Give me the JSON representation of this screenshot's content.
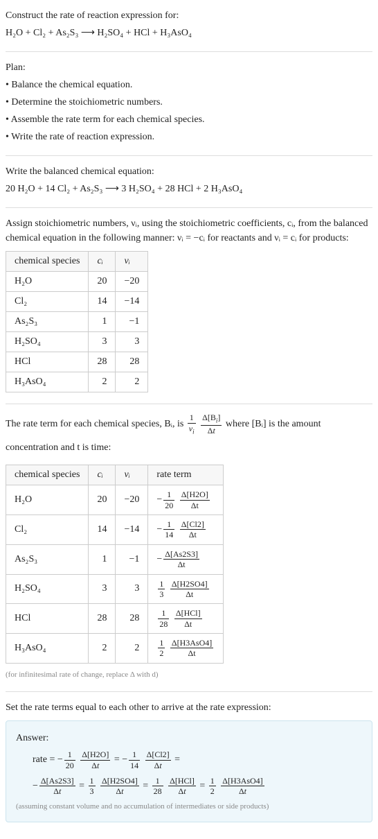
{
  "intro": {
    "line1": "Construct the rate of reaction expression for:",
    "equation": "H₂O + Cl₂ + As₂S₃  ⟶  H₂SO₄ + HCl + H₃AsO₄"
  },
  "plan": {
    "heading": "Plan:",
    "items": [
      "Balance the chemical equation.",
      "Determine the stoichiometric numbers.",
      "Assemble the rate term for each chemical species.",
      "Write the rate of reaction expression."
    ]
  },
  "balanced": {
    "heading": "Write the balanced chemical equation:",
    "equation": "20 H₂O + 14 Cl₂ + As₂S₃  ⟶  3 H₂SO₄ + 28 HCl + 2 H₃AsO₄"
  },
  "stoich": {
    "text": "Assign stoichiometric numbers, νᵢ, using the stoichiometric coefficients, cᵢ, from the balanced chemical equation in the following manner: νᵢ = −cᵢ for reactants and νᵢ = cᵢ for products:",
    "headers": [
      "chemical species",
      "cᵢ",
      "νᵢ"
    ],
    "rows": [
      {
        "sp": "H₂O",
        "c": "20",
        "v": "−20"
      },
      {
        "sp": "Cl₂",
        "c": "14",
        "v": "−14"
      },
      {
        "sp": "As₂S₃",
        "c": "1",
        "v": "−1"
      },
      {
        "sp": "H₂SO₄",
        "c": "3",
        "v": "3"
      },
      {
        "sp": "HCl",
        "c": "28",
        "v": "28"
      },
      {
        "sp": "H₃AsO₄",
        "c": "2",
        "v": "2"
      }
    ]
  },
  "rate": {
    "text_a": "The rate term for each chemical species, Bᵢ, is ",
    "text_b": " where [Bᵢ] is the amount concentration and t is time:",
    "headers": [
      "chemical species",
      "cᵢ",
      "νᵢ",
      "rate term"
    ],
    "rows": [
      {
        "sp": "H₂O",
        "c": "20",
        "v": "−20",
        "rt_pre": "−",
        "rt_coef_num": "1",
        "rt_coef_den": "20",
        "rt_dnum": "Δ[H2O]",
        "rt_dden": "Δt"
      },
      {
        "sp": "Cl₂",
        "c": "14",
        "v": "−14",
        "rt_pre": "−",
        "rt_coef_num": "1",
        "rt_coef_den": "14",
        "rt_dnum": "Δ[Cl2]",
        "rt_dden": "Δt"
      },
      {
        "sp": "As₂S₃",
        "c": "1",
        "v": "−1",
        "rt_pre": "−",
        "rt_coef_num": "",
        "rt_coef_den": "",
        "rt_dnum": "Δ[As2S3]",
        "rt_dden": "Δt"
      },
      {
        "sp": "H₂SO₄",
        "c": "3",
        "v": "3",
        "rt_pre": "",
        "rt_coef_num": "1",
        "rt_coef_den": "3",
        "rt_dnum": "Δ[H2SO4]",
        "rt_dden": "Δt"
      },
      {
        "sp": "HCl",
        "c": "28",
        "v": "28",
        "rt_pre": "",
        "rt_coef_num": "1",
        "rt_coef_den": "28",
        "rt_dnum": "Δ[HCl]",
        "rt_dden": "Δt"
      },
      {
        "sp": "H₃AsO₄",
        "c": "2",
        "v": "2",
        "rt_pre": "",
        "rt_coef_num": "1",
        "rt_coef_den": "2",
        "rt_dnum": "Δ[H3AsO4]",
        "rt_dden": "Δt"
      }
    ],
    "note": "(for infinitesimal rate of change, replace Δ with d)"
  },
  "setequal": {
    "text": "Set the rate terms equal to each other to arrive at the rate expression:"
  },
  "answer": {
    "heading": "Answer:",
    "prefix": "rate = ",
    "caption": "(assuming constant volume and no accumulation of intermediates or side products)"
  }
}
